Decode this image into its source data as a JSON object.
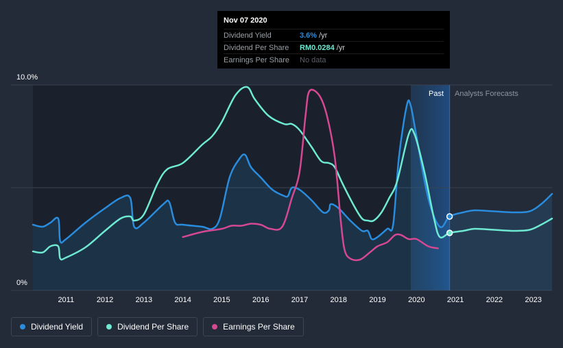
{
  "tooltip": {
    "date": "Nov 07 2020",
    "rows": [
      {
        "label": "Dividend Yield",
        "value": "3.6%",
        "unit": "/yr",
        "color": "#2a8cdc"
      },
      {
        "label": "Dividend Per Share",
        "value": "RM0.0284",
        "unit": "/yr",
        "color": "#6ee9d2"
      },
      {
        "label": "Earnings Per Share",
        "value": "No data",
        "unit": "",
        "color": "#5c6168"
      }
    ]
  },
  "regions": {
    "past": "Past",
    "forecast": "Analysts Forecasts"
  },
  "legend": [
    {
      "label": "Dividend Yield",
      "color": "#2a8cdc"
    },
    {
      "label": "Dividend Per Share",
      "color": "#6ee9d2"
    },
    {
      "label": "Earnings Per Share",
      "color": "#d64892"
    }
  ],
  "chart_data": {
    "type": "line",
    "x_ticks": [
      "2011",
      "2012",
      "2013",
      "2014",
      "2015",
      "2016",
      "2017",
      "2018",
      "2019",
      "2020",
      "2021",
      "2022",
      "2023"
    ],
    "y_tick_labels": [
      "0%",
      "10.0%"
    ],
    "ylim": [
      0,
      10
    ],
    "xlim": [
      2010.15,
      2023.48
    ],
    "past_forecast_divider": 2020.85,
    "highlight_start": 2019.85,
    "series": [
      {
        "name": "Dividend Yield",
        "color": "#2a8cdc",
        "fill": true,
        "points": [
          [
            2010.15,
            3.2
          ],
          [
            2010.4,
            3.1
          ],
          [
            2010.6,
            3.3
          ],
          [
            2010.8,
            3.5
          ],
          [
            2010.85,
            2.4
          ],
          [
            2011.0,
            2.5
          ],
          [
            2011.5,
            3.3
          ],
          [
            2012.0,
            4.0
          ],
          [
            2012.4,
            4.5
          ],
          [
            2012.65,
            4.5
          ],
          [
            2012.75,
            3.1
          ],
          [
            2013.0,
            3.3
          ],
          [
            2013.5,
            4.2
          ],
          [
            2013.65,
            4.3
          ],
          [
            2013.8,
            3.3
          ],
          [
            2014.0,
            3.2
          ],
          [
            2014.5,
            3.1
          ],
          [
            2014.75,
            3.0
          ],
          [
            2014.95,
            3.5
          ],
          [
            2015.2,
            5.5
          ],
          [
            2015.45,
            6.4
          ],
          [
            2015.6,
            6.6
          ],
          [
            2015.75,
            6.0
          ],
          [
            2016.0,
            5.5
          ],
          [
            2016.3,
            4.9
          ],
          [
            2016.6,
            4.6
          ],
          [
            2016.7,
            4.6
          ],
          [
            2016.8,
            5.0
          ],
          [
            2017.0,
            4.9
          ],
          [
            2017.3,
            4.4
          ],
          [
            2017.6,
            3.8
          ],
          [
            2017.75,
            3.9
          ],
          [
            2017.8,
            4.2
          ],
          [
            2018.0,
            4.0
          ],
          [
            2018.3,
            3.4
          ],
          [
            2018.6,
            2.9
          ],
          [
            2018.75,
            2.9
          ],
          [
            2018.85,
            2.5
          ],
          [
            2019.0,
            2.6
          ],
          [
            2019.25,
            3.0
          ],
          [
            2019.4,
            3.2
          ],
          [
            2019.55,
            6.5
          ],
          [
            2019.75,
            9.0
          ],
          [
            2019.85,
            9.0
          ],
          [
            2020.0,
            7.5
          ],
          [
            2020.3,
            4.5
          ],
          [
            2020.6,
            3.1
          ],
          [
            2020.85,
            3.6
          ],
          [
            2021.2,
            3.8
          ],
          [
            2021.5,
            3.9
          ],
          [
            2022.0,
            3.85
          ],
          [
            2022.5,
            3.8
          ],
          [
            2022.9,
            3.85
          ],
          [
            2023.2,
            4.2
          ],
          [
            2023.48,
            4.7
          ]
        ]
      },
      {
        "name": "Dividend Per Share",
        "color": "#6ee9d2",
        "fill": false,
        "points": [
          [
            2010.15,
            1.9
          ],
          [
            2010.4,
            1.85
          ],
          [
            2010.6,
            2.15
          ],
          [
            2010.8,
            2.15
          ],
          [
            2010.85,
            1.55
          ],
          [
            2011.0,
            1.6
          ],
          [
            2011.5,
            2.1
          ],
          [
            2012.0,
            2.9
          ],
          [
            2012.4,
            3.5
          ],
          [
            2012.65,
            3.6
          ],
          [
            2012.75,
            3.4
          ],
          [
            2013.0,
            3.7
          ],
          [
            2013.35,
            5.2
          ],
          [
            2013.6,
            5.9
          ],
          [
            2014.0,
            6.2
          ],
          [
            2014.5,
            7.1
          ],
          [
            2014.75,
            7.5
          ],
          [
            2015.0,
            8.2
          ],
          [
            2015.35,
            9.5
          ],
          [
            2015.65,
            9.9
          ],
          [
            2015.85,
            9.3
          ],
          [
            2016.2,
            8.5
          ],
          [
            2016.6,
            8.1
          ],
          [
            2016.8,
            8.1
          ],
          [
            2017.0,
            7.8
          ],
          [
            2017.3,
            7.0
          ],
          [
            2017.55,
            6.3
          ],
          [
            2017.75,
            6.2
          ],
          [
            2017.9,
            6.0
          ],
          [
            2018.1,
            5.2
          ],
          [
            2018.4,
            4.1
          ],
          [
            2018.6,
            3.5
          ],
          [
            2018.75,
            3.4
          ],
          [
            2018.9,
            3.4
          ],
          [
            2019.1,
            3.8
          ],
          [
            2019.3,
            4.5
          ],
          [
            2019.5,
            5.3
          ],
          [
            2019.8,
            7.6
          ],
          [
            2019.95,
            7.6
          ],
          [
            2020.2,
            5.8
          ],
          [
            2020.45,
            3.5
          ],
          [
            2020.6,
            2.6
          ],
          [
            2020.85,
            2.8
          ],
          [
            2021.2,
            2.9
          ],
          [
            2021.5,
            3.0
          ],
          [
            2022.0,
            2.95
          ],
          [
            2022.5,
            2.9
          ],
          [
            2022.9,
            2.95
          ],
          [
            2023.2,
            3.2
          ],
          [
            2023.48,
            3.5
          ]
        ]
      },
      {
        "name": "Earnings Per Share",
        "color": "#d64892",
        "fill": false,
        "points": [
          [
            2014.0,
            2.6
          ],
          [
            2014.5,
            2.85
          ],
          [
            2015.0,
            3.0
          ],
          [
            2015.25,
            3.15
          ],
          [
            2015.5,
            3.15
          ],
          [
            2015.75,
            3.25
          ],
          [
            2016.0,
            3.2
          ],
          [
            2016.25,
            3.0
          ],
          [
            2016.55,
            3.1
          ],
          [
            2016.8,
            4.5
          ],
          [
            2017.0,
            5.8
          ],
          [
            2017.15,
            8.5
          ],
          [
            2017.25,
            9.7
          ],
          [
            2017.5,
            9.5
          ],
          [
            2017.7,
            8.5
          ],
          [
            2017.9,
            6.5
          ],
          [
            2018.05,
            3.5
          ],
          [
            2018.15,
            2.0
          ],
          [
            2018.3,
            1.55
          ],
          [
            2018.55,
            1.5
          ],
          [
            2018.8,
            1.85
          ],
          [
            2019.0,
            2.15
          ],
          [
            2019.25,
            2.35
          ],
          [
            2019.45,
            2.7
          ],
          [
            2019.6,
            2.7
          ],
          [
            2019.8,
            2.5
          ],
          [
            2020.0,
            2.5
          ],
          [
            2020.3,
            2.15
          ],
          [
            2020.55,
            2.05
          ]
        ]
      }
    ],
    "markers": [
      {
        "series": "Dividend Yield",
        "x": 2020.85,
        "y": 3.6
      },
      {
        "series": "Dividend Per Share",
        "x": 2020.85,
        "y": 2.8
      }
    ]
  }
}
